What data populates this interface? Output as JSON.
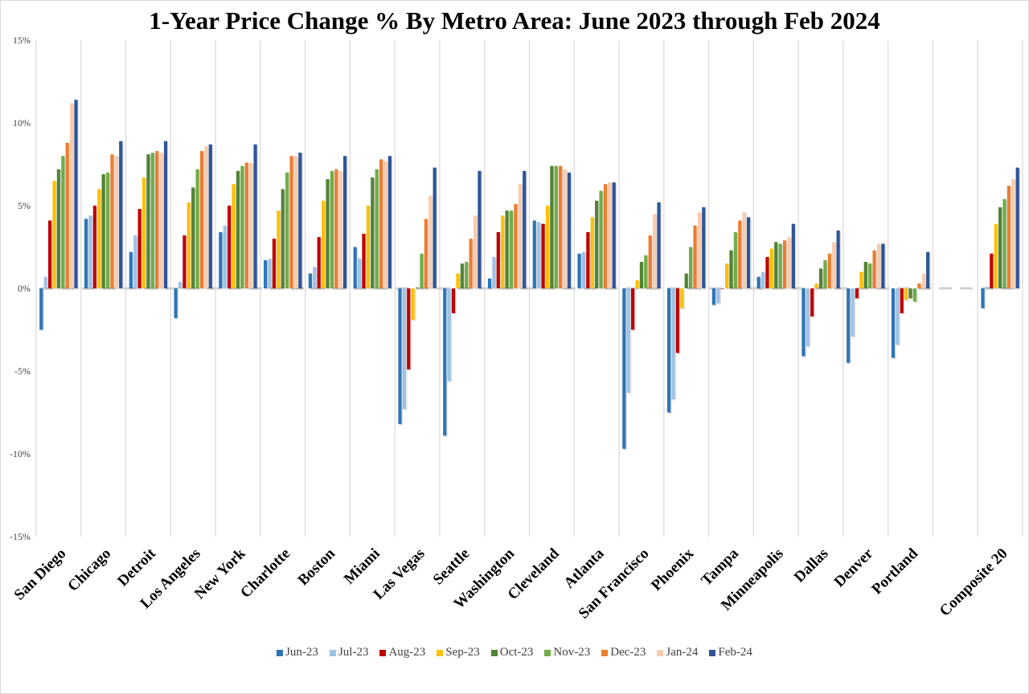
{
  "chart_data": {
    "type": "bar",
    "title": "1-Year Price Change % By Metro Area: June 2023 through Feb 2024",
    "xlabel": "",
    "ylabel": "",
    "ylim": [
      -15,
      15
    ],
    "yticks": [
      15,
      10,
      5,
      0,
      -5,
      -10,
      -15
    ],
    "ytick_labels": [
      "15%",
      "10%",
      "5%",
      "0%",
      "-5%",
      "-10%",
      "-15%"
    ],
    "grid": "vertical category separators",
    "legend_position": "bottom",
    "categories": [
      "San Diego",
      "Chicago",
      "Detroit",
      "Los Angeles",
      "New York",
      "Charlotte",
      "Boston",
      "Miami",
      "Las Vegas",
      "Seattle",
      "Washington",
      "Cleveland",
      "Atlanta",
      "San Francisco",
      "Phoenix",
      "Tampa",
      "Minneapolis",
      "Dallas",
      "Denver",
      "Portland",
      "",
      "Composite 20"
    ],
    "series": [
      {
        "name": "Jun-23",
        "color": "#2e75b6",
        "values": [
          -2.5,
          4.2,
          2.2,
          -1.8,
          3.4,
          1.7,
          0.9,
          2.5,
          -8.2,
          -8.9,
          0.6,
          4.1,
          2.1,
          -9.7,
          -7.5,
          -1.0,
          0.7,
          -4.1,
          -4.5,
          -4.2,
          null,
          -1.2
        ]
      },
      {
        "name": "Jul-23",
        "color": "#9dc3e6",
        "values": [
          0.7,
          4.4,
          3.2,
          0.4,
          3.8,
          1.8,
          1.3,
          1.8,
          -7.3,
          -5.6,
          1.9,
          4.0,
          2.2,
          -6.3,
          -6.7,
          -0.9,
          1.0,
          -3.5,
          -2.9,
          -3.4,
          null,
          0.1
        ]
      },
      {
        "name": "Aug-23",
        "color": "#c00000",
        "values": [
          4.1,
          5.0,
          4.8,
          3.2,
          5.0,
          3.0,
          3.1,
          3.3,
          -4.9,
          -1.5,
          3.4,
          3.9,
          3.4,
          -2.5,
          -3.9,
          0.0,
          1.9,
          -1.7,
          -0.6,
          -1.5,
          null,
          2.1
        ]
      },
      {
        "name": "Sep-23",
        "color": "#ffc000",
        "values": [
          6.5,
          6.0,
          6.7,
          5.2,
          6.3,
          4.7,
          5.3,
          5.0,
          -1.9,
          0.9,
          4.4,
          5.0,
          4.3,
          0.5,
          -1.2,
          1.5,
          2.4,
          0.3,
          1.0,
          -0.7,
          null,
          3.9
        ]
      },
      {
        "name": "Oct-23",
        "color": "#548235",
        "values": [
          7.2,
          6.9,
          8.1,
          6.1,
          7.1,
          6.0,
          6.6,
          6.7,
          0.05,
          1.5,
          4.7,
          7.4,
          5.3,
          1.6,
          0.9,
          2.3,
          2.8,
          1.2,
          1.6,
          -0.6,
          null,
          4.9
        ]
      },
      {
        "name": "Nov-23",
        "color": "#70ad47",
        "values": [
          8.0,
          7.0,
          8.2,
          7.2,
          7.4,
          7.0,
          7.1,
          7.2,
          2.1,
          1.6,
          4.7,
          7.4,
          5.9,
          2.0,
          2.5,
          3.4,
          2.7,
          1.7,
          1.5,
          -0.8,
          null,
          5.4
        ]
      },
      {
        "name": "Dec-23",
        "color": "#ed7d31",
        "values": [
          8.8,
          8.1,
          8.3,
          8.3,
          7.6,
          8.0,
          7.2,
          7.8,
          4.2,
          3.0,
          5.1,
          7.4,
          6.3,
          3.2,
          3.8,
          4.1,
          2.9,
          2.1,
          2.3,
          0.3,
          null,
          6.2
        ]
      },
      {
        "name": "Jan-24",
        "color": "#f8cbad",
        "values": [
          11.2,
          8.0,
          8.2,
          8.6,
          7.6,
          8.0,
          7.1,
          7.7,
          5.6,
          4.4,
          6.3,
          7.2,
          6.4,
          4.5,
          4.6,
          4.6,
          3.1,
          2.8,
          2.7,
          0.9,
          null,
          6.6
        ]
      },
      {
        "name": "Feb-24",
        "color": "#2f5597",
        "values": [
          11.4,
          8.9,
          8.9,
          8.7,
          8.7,
          8.2,
          8.0,
          8.0,
          7.3,
          7.1,
          7.1,
          7.0,
          6.4,
          5.2,
          4.9,
          4.3,
          3.9,
          3.5,
          2.7,
          2.2,
          null,
          7.3
        ]
      }
    ]
  }
}
